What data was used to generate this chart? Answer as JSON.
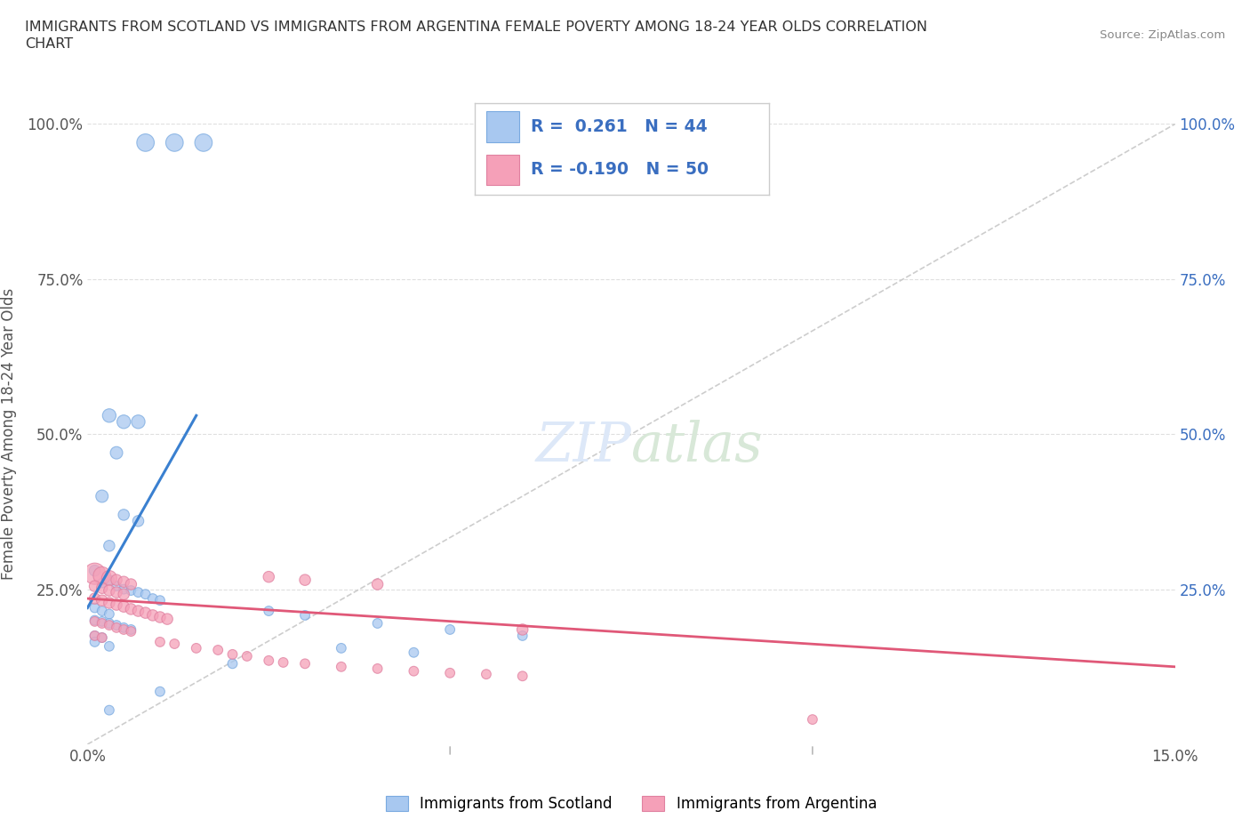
{
  "title": "IMMIGRANTS FROM SCOTLAND VS IMMIGRANTS FROM ARGENTINA FEMALE POVERTY AMONG 18-24 YEAR OLDS CORRELATION\nCHART",
  "source": "Source: ZipAtlas.com",
  "ylabel": "Female Poverty Among 18-24 Year Olds",
  "scotland_color": "#a8c8f0",
  "argentina_color": "#f5a0b8",
  "scotland_line_color": "#3a80d0",
  "argentina_line_color": "#e05878",
  "ref_line_color": "#c8c8c8",
  "legend_text_color": "#3a6ec0",
  "R_scotland": 0.261,
  "N_scotland": 44,
  "R_argentina": -0.19,
  "N_argentina": 50,
  "xlim": [
    0.0,
    0.15
  ],
  "ylim": [
    0.0,
    1.0
  ],
  "background_color": "#ffffff",
  "grid_color": "#d8d8d8",
  "scotland_points": [
    [
      0.008,
      0.97
    ],
    [
      0.012,
      0.97
    ],
    [
      0.016,
      0.97
    ],
    [
      0.003,
      0.53
    ],
    [
      0.005,
      0.52
    ],
    [
      0.007,
      0.52
    ],
    [
      0.004,
      0.47
    ],
    [
      0.002,
      0.4
    ],
    [
      0.005,
      0.37
    ],
    [
      0.007,
      0.36
    ],
    [
      0.003,
      0.32
    ],
    [
      0.001,
      0.28
    ],
    [
      0.002,
      0.26
    ],
    [
      0.003,
      0.265
    ],
    [
      0.004,
      0.255
    ],
    [
      0.005,
      0.25
    ],
    [
      0.006,
      0.248
    ],
    [
      0.007,
      0.245
    ],
    [
      0.008,
      0.242
    ],
    [
      0.009,
      0.235
    ],
    [
      0.01,
      0.232
    ],
    [
      0.001,
      0.22
    ],
    [
      0.002,
      0.215
    ],
    [
      0.003,
      0.21
    ],
    [
      0.001,
      0.2
    ],
    [
      0.002,
      0.198
    ],
    [
      0.003,
      0.195
    ],
    [
      0.004,
      0.192
    ],
    [
      0.005,
      0.188
    ],
    [
      0.006,
      0.185
    ],
    [
      0.001,
      0.175
    ],
    [
      0.002,
      0.172
    ],
    [
      0.001,
      0.165
    ],
    [
      0.003,
      0.158
    ],
    [
      0.025,
      0.215
    ],
    [
      0.03,
      0.208
    ],
    [
      0.04,
      0.195
    ],
    [
      0.05,
      0.185
    ],
    [
      0.06,
      0.175
    ],
    [
      0.035,
      0.155
    ],
    [
      0.045,
      0.148
    ],
    [
      0.02,
      0.13
    ],
    [
      0.01,
      0.085
    ],
    [
      0.003,
      0.055
    ]
  ],
  "scotland_sizes": [
    200,
    200,
    200,
    120,
    120,
    120,
    100,
    100,
    80,
    80,
    80,
    80,
    60,
    60,
    60,
    60,
    60,
    60,
    60,
    60,
    60,
    60,
    60,
    60,
    60,
    60,
    60,
    60,
    60,
    60,
    60,
    60,
    60,
    60,
    60,
    60,
    60,
    60,
    60,
    60,
    60,
    60,
    60,
    60
  ],
  "argentina_points": [
    [
      0.001,
      0.275
    ],
    [
      0.002,
      0.272
    ],
    [
      0.003,
      0.268
    ],
    [
      0.004,
      0.265
    ],
    [
      0.005,
      0.262
    ],
    [
      0.006,
      0.258
    ],
    [
      0.001,
      0.255
    ],
    [
      0.002,
      0.252
    ],
    [
      0.003,
      0.248
    ],
    [
      0.004,
      0.245
    ],
    [
      0.005,
      0.242
    ],
    [
      0.001,
      0.235
    ],
    [
      0.002,
      0.232
    ],
    [
      0.003,
      0.228
    ],
    [
      0.004,
      0.225
    ],
    [
      0.005,
      0.222
    ],
    [
      0.006,
      0.218
    ],
    [
      0.007,
      0.215
    ],
    [
      0.008,
      0.212
    ],
    [
      0.009,
      0.208
    ],
    [
      0.01,
      0.205
    ],
    [
      0.011,
      0.202
    ],
    [
      0.001,
      0.198
    ],
    [
      0.002,
      0.195
    ],
    [
      0.003,
      0.192
    ],
    [
      0.004,
      0.188
    ],
    [
      0.005,
      0.185
    ],
    [
      0.006,
      0.182
    ],
    [
      0.001,
      0.175
    ],
    [
      0.002,
      0.172
    ],
    [
      0.01,
      0.165
    ],
    [
      0.012,
      0.162
    ],
    [
      0.015,
      0.155
    ],
    [
      0.018,
      0.152
    ],
    [
      0.02,
      0.145
    ],
    [
      0.022,
      0.142
    ],
    [
      0.025,
      0.135
    ],
    [
      0.027,
      0.132
    ],
    [
      0.03,
      0.13
    ],
    [
      0.035,
      0.125
    ],
    [
      0.04,
      0.122
    ],
    [
      0.045,
      0.118
    ],
    [
      0.055,
      0.113
    ],
    [
      0.05,
      0.115
    ],
    [
      0.06,
      0.11
    ],
    [
      0.025,
      0.27
    ],
    [
      0.03,
      0.265
    ],
    [
      0.04,
      0.258
    ],
    [
      0.06,
      0.185
    ],
    [
      0.1,
      0.04
    ]
  ],
  "argentina_sizes": [
    300,
    200,
    150,
    80,
    80,
    80,
    80,
    80,
    80,
    80,
    80,
    80,
    80,
    80,
    80,
    80,
    80,
    80,
    80,
    80,
    80,
    80,
    60,
    60,
    60,
    60,
    60,
    60,
    60,
    60,
    60,
    60,
    60,
    60,
    60,
    60,
    60,
    60,
    60,
    60,
    60,
    60,
    60,
    60,
    60,
    80,
    80,
    80,
    80,
    60
  ]
}
